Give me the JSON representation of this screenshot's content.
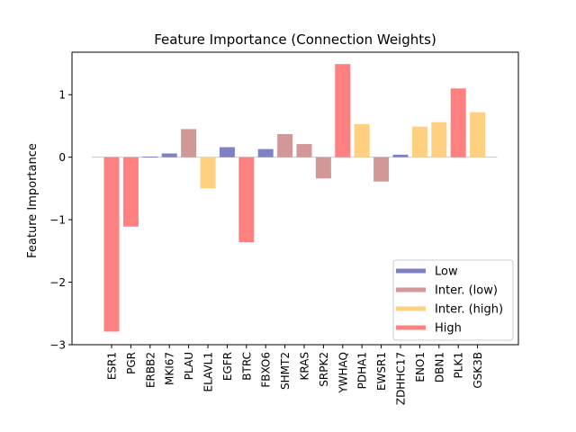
{
  "chart_data": {
    "type": "bar",
    "title": "Feature Importance (Connection Weights)",
    "xlabel": "",
    "ylabel": "Feature Importance",
    "ylim": [
      -3,
      1.68
    ],
    "yticks": [
      -3,
      -2,
      -1,
      0,
      1
    ],
    "ytick_labels": [
      "−3",
      "−2",
      "−1",
      "0",
      "1"
    ],
    "grid": false,
    "zero_line": true,
    "legend_placement": "lower-right",
    "categories": [
      "ESR1",
      "PGR",
      "ERBB2",
      "MKI67",
      "PLAU",
      "ELAVL1",
      "EGFR",
      "BTRC",
      "FBXO6",
      "SHMT2",
      "KRAS",
      "SRPK2",
      "YWHAQ",
      "PDHA1",
      "EWSR1",
      "ZDHHC17",
      "ENO1",
      "DBN1",
      "PLK1",
      "GSK3B"
    ],
    "values": [
      -2.79,
      -1.11,
      0.01,
      0.06,
      0.45,
      -0.5,
      0.16,
      -1.36,
      0.13,
      0.37,
      0.21,
      -0.34,
      1.49,
      0.53,
      -0.39,
      0.04,
      0.49,
      0.56,
      1.1,
      0.72
    ],
    "groups": [
      "High",
      "High",
      "Low",
      "Low",
      "Inter. (low)",
      "Inter. (high)",
      "Low",
      "High",
      "Low",
      "Inter. (low)",
      "Inter. (low)",
      "Inter. (low)",
      "High",
      "Inter. (high)",
      "Inter. (low)",
      "Low",
      "Inter. (high)",
      "Inter. (high)",
      "High",
      "Inter. (high)"
    ],
    "legend": [
      {
        "name": "Low",
        "color": "#8080c4"
      },
      {
        "name": "Inter. (low)",
        "color": "#d29898"
      },
      {
        "name": "Inter. (high)",
        "color": "#ffd080"
      },
      {
        "name": "High",
        "color": "#ff8080"
      }
    ]
  }
}
